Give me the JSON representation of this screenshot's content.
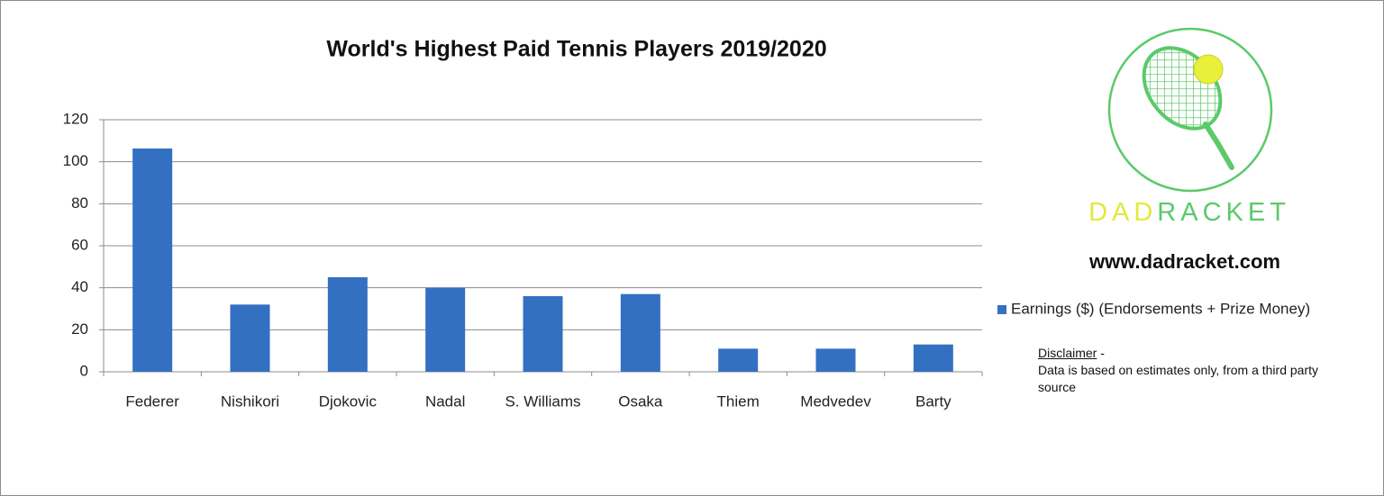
{
  "chart_data": {
    "type": "bar",
    "title": "World's Highest Paid Tennis Players 2019/2020",
    "categories": [
      "Federer",
      "Nishikori",
      "Djokovic",
      "Nadal",
      "S. Williams",
      "Osaka",
      "Thiem",
      "Medvedev",
      "Barty"
    ],
    "series": [
      {
        "name": "Earnings ($) (Endorsements + Prize Money)",
        "color": "#3470c2",
        "values": [
          106.3,
          32,
          45,
          40,
          36,
          37,
          11,
          11,
          13
        ]
      }
    ],
    "ylim": [
      0,
      120
    ],
    "yticks": [
      0,
      20,
      40,
      60,
      80,
      100,
      120
    ],
    "grid": true,
    "legend": "right"
  },
  "brand": {
    "parts": [
      "DAD",
      "RACKET"
    ],
    "website": "www.dadracket.com"
  },
  "disclaimer": {
    "heading": "Disclaimer",
    "separator": "-",
    "text": "Data is based on estimates only, from a third party source"
  }
}
